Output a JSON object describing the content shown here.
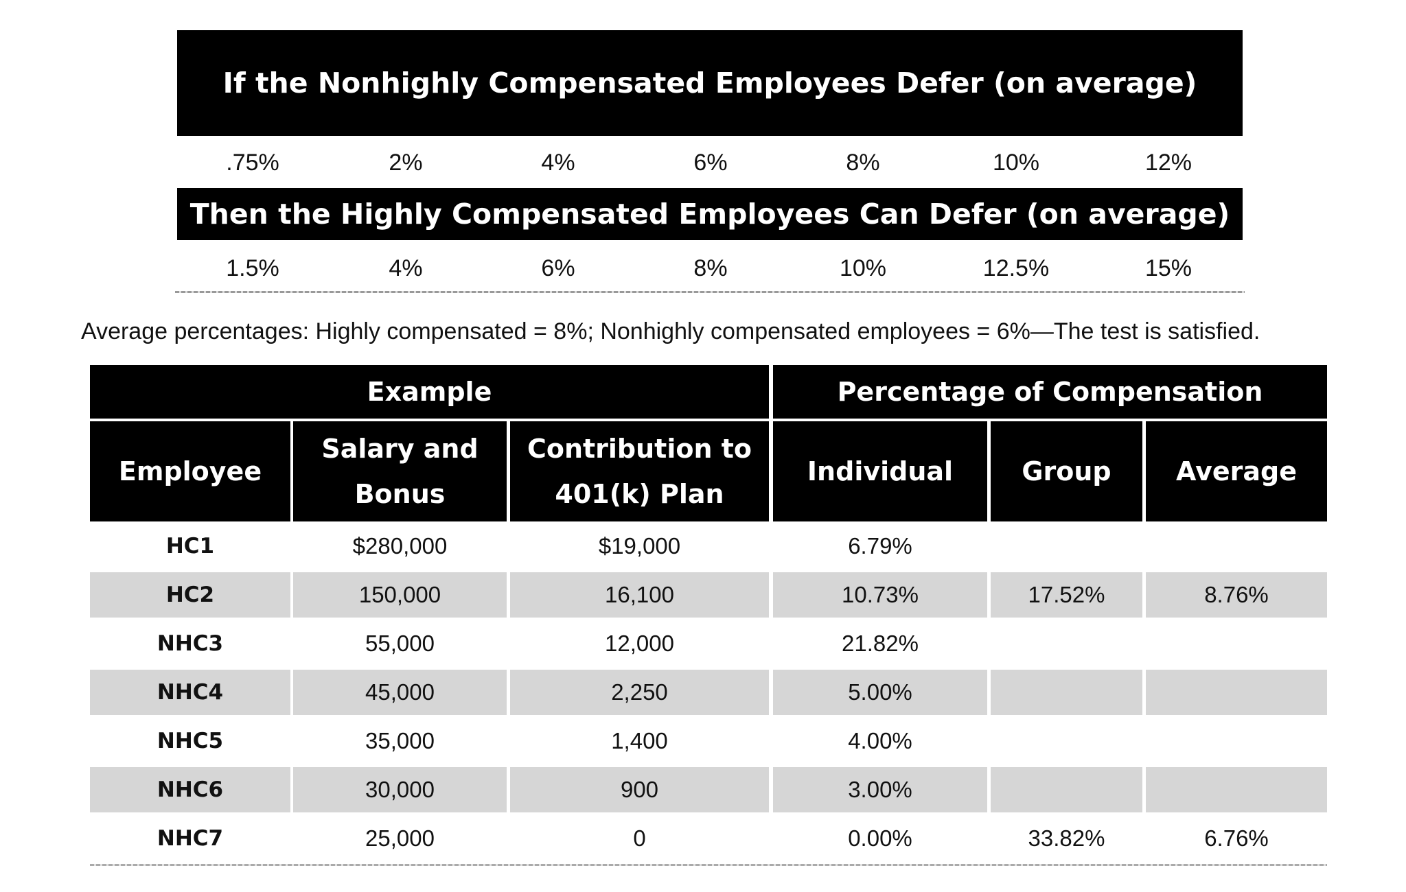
{
  "nhc_banner": "If the Nonhighly Compensated Employees Defer (on average)",
  "nhc_rates": [
    ".75%",
    "2%",
    "4%",
    "6%",
    "8%",
    "10%",
    "12%"
  ],
  "hc_banner": "Then the Highly Compensated Employees Can Defer (on average)",
  "hc_rates": [
    "1.5%",
    "4%",
    "6%",
    "8%",
    "10%",
    "12.5%",
    "15%"
  ],
  "average_note": "Average percentages: Highly compensated = 8%; Nonhighly compensated employees = 6%—The test is satisfied.",
  "table": {
    "group_headers": {
      "example": "Example",
      "percentage": "Percentage of Compensation"
    },
    "columns": {
      "employee": "Employee",
      "salary_line1": "Salary and",
      "salary_line2": "Bonus",
      "contribution_line1": "Contribution to",
      "contribution_line2": "401(k) Plan",
      "individual": "Individual",
      "group": "Group",
      "average": "Average"
    },
    "rows": [
      {
        "employee": "HC1",
        "salary": "$280,000",
        "contribution": "$19,000",
        "individual": "6.79%",
        "group": "",
        "average": ""
      },
      {
        "employee": "HC2",
        "salary": "150,000",
        "contribution": "16,100",
        "individual": "10.73%",
        "group": "17.52%",
        "average": "8.76%"
      },
      {
        "employee": "NHC3",
        "salary": "55,000",
        "contribution": "12,000",
        "individual": "21.82%",
        "group": "",
        "average": ""
      },
      {
        "employee": "NHC4",
        "salary": "45,000",
        "contribution": "2,250",
        "individual": "5.00%",
        "group": "",
        "average": ""
      },
      {
        "employee": "NHC5",
        "salary": "35,000",
        "contribution": "1,400",
        "individual": "4.00%",
        "group": "",
        "average": ""
      },
      {
        "employee": "NHC6",
        "salary": "30,000",
        "contribution": "900",
        "individual": "3.00%",
        "group": "",
        "average": ""
      },
      {
        "employee": "NHC7",
        "salary": "25,000",
        "contribution": "0",
        "individual": "0.00%",
        "group": "33.82%",
        "average": "6.76%"
      }
    ]
  }
}
